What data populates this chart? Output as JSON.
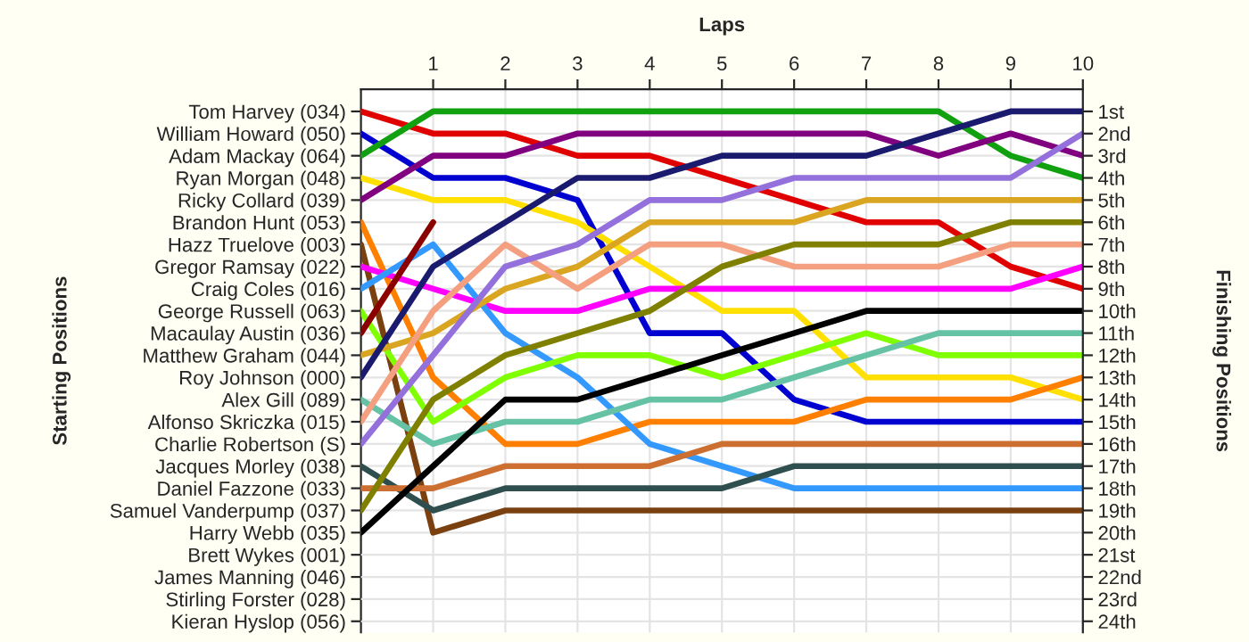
{
  "chart_data": {
    "type": "line",
    "xlabel": "Laps",
    "y2label": "Finishing Positions",
    "x": [
      0,
      1,
      2,
      3,
      4,
      5,
      6,
      7,
      8,
      9,
      10
    ],
    "xlim": [
      0,
      10
    ],
    "xticks": [
      1,
      2,
      3,
      4,
      5,
      6,
      7,
      8,
      9,
      10
    ],
    "y2lim": [
      24.5,
      0
    ],
    "y2ticks": [
      {
        "value": 1,
        "label": "1st"
      },
      {
        "value": 2,
        "label": "2nd"
      },
      {
        "value": 3,
        "label": "3rd"
      },
      {
        "value": 4,
        "label": "4th"
      },
      {
        "value": 5,
        "label": "5th"
      },
      {
        "value": 6,
        "label": "6th"
      },
      {
        "value": 7,
        "label": "7th"
      },
      {
        "value": 8,
        "label": "8th"
      },
      {
        "value": 9,
        "label": "9th"
      },
      {
        "value": 10,
        "label": "10th"
      },
      {
        "value": 11,
        "label": "11th"
      },
      {
        "value": 12,
        "label": "12th"
      },
      {
        "value": 13,
        "label": "13th"
      },
      {
        "value": 14,
        "label": "14th"
      },
      {
        "value": 15,
        "label": "15th"
      },
      {
        "value": 16,
        "label": "16th"
      },
      {
        "value": 17,
        "label": "17th"
      },
      {
        "value": 18,
        "label": "18th"
      },
      {
        "value": 19,
        "label": "19th"
      },
      {
        "value": 20,
        "label": "20th"
      },
      {
        "value": 21,
        "label": "21st"
      },
      {
        "value": 22,
        "label": "22nd"
      },
      {
        "value": 23,
        "label": "23rd"
      },
      {
        "value": 24,
        "label": "24th"
      }
    ],
    "annotations": [
      "Brett Wykes (001)",
      "James Manning (046)",
      "Stirling Forster (028)",
      "Kieran Hyslop (056)",
      "Starting Positions"
    ],
    "grid": true,
    "legend": "left",
    "marker": "none",
    "line_style": "solid",
    "series": [
      {
        "name": "Tom Harvey (034)",
        "axis": "y2",
        "color": "#e00000",
        "values": [
          1,
          2,
          2,
          3,
          3,
          4,
          5,
          6,
          6,
          8,
          9
        ]
      },
      {
        "name": "William Howard (050)",
        "axis": "y2",
        "color": "#0000d0",
        "values": [
          2,
          4,
          4,
          5,
          11,
          11,
          14,
          15,
          15,
          15,
          15
        ]
      },
      {
        "name": "Adam Mackay (064)",
        "axis": "y2",
        "color": "#10a010",
        "values": [
          3,
          1,
          1,
          1,
          1,
          1,
          1,
          1,
          1,
          3,
          4
        ]
      },
      {
        "name": "Ryan Morgan (048)",
        "axis": "y2",
        "color": "#ffe000",
        "values": [
          4,
          5,
          5,
          6,
          8,
          10,
          10,
          13,
          13,
          13,
          14
        ]
      },
      {
        "name": "Ricky Collard (039)",
        "axis": "y2",
        "color": "#800080",
        "values": [
          5,
          3,
          3,
          2,
          2,
          2,
          2,
          2,
          3,
          2,
          3
        ]
      },
      {
        "name": "Brandon Hunt (053)",
        "axis": "y2",
        "color": "#ff7f00",
        "values": [
          6,
          13,
          16,
          16,
          15,
          15,
          15,
          14,
          14,
          14,
          13
        ]
      },
      {
        "name": "Hazz Truelove (003)",
        "axis": "y2",
        "color": "#7a4010",
        "values": [
          7,
          20,
          19,
          19,
          19,
          19,
          19,
          19,
          19,
          19,
          19
        ]
      },
      {
        "name": "Gregor Ramsay (022)",
        "axis": "y2",
        "color": "#ff00ff",
        "values": [
          8,
          9,
          10,
          10,
          9,
          9,
          9,
          9,
          9,
          9,
          8
        ]
      },
      {
        "name": "Craig Coles (016)",
        "axis": "y2",
        "color": "#3399ff",
        "values": [
          9,
          7,
          11,
          13,
          16,
          17,
          18,
          18,
          18,
          18,
          18
        ]
      },
      {
        "name": "George Russell (063)",
        "axis": "y2",
        "color": "#80ff00",
        "values": [
          10,
          15,
          13,
          12,
          12,
          13,
          12,
          11,
          12,
          12,
          12
        ]
      },
      {
        "name": "Macaulay Austin (036)",
        "axis": "y2",
        "color": "#8b0000",
        "values": [
          11,
          6,
          null,
          null,
          null,
          null,
          null,
          null,
          null,
          null,
          null
        ]
      },
      {
        "name": "Matthew Graham (044)",
        "axis": "y2",
        "color": "#daa520",
        "values": [
          12,
          11,
          9,
          8,
          6,
          6,
          6,
          5,
          5,
          5,
          5
        ]
      },
      {
        "name": "Roy Johnson (000)",
        "axis": "y2",
        "color": "#1a1a6e",
        "values": [
          13,
          8,
          6,
          4,
          4,
          3,
          3,
          3,
          2,
          1,
          1
        ]
      },
      {
        "name": "Alex Gill (089)",
        "axis": "y2",
        "color": "#66c2a5",
        "values": [
          14,
          16,
          15,
          15,
          14,
          14,
          13,
          12,
          11,
          11,
          11
        ]
      },
      {
        "name": "Alfonso Skriczka (015)",
        "axis": "y2",
        "color": "#f4a080",
        "values": [
          15,
          10,
          7,
          9,
          7,
          7,
          8,
          8,
          8,
          7,
          7
        ]
      },
      {
        "name": "Charlie Robertson (S)",
        "axis": "y2",
        "color": "#9370db",
        "values": [
          16,
          12,
          8,
          7,
          5,
          5,
          4,
          4,
          4,
          4,
          2
        ]
      },
      {
        "name": "Jacques Morley (038)",
        "axis": "y2",
        "color": "#2f4f4f",
        "values": [
          17,
          19,
          18,
          18,
          18,
          18,
          17,
          17,
          17,
          17,
          17
        ]
      },
      {
        "name": "Daniel Fazzone (033)",
        "axis": "y2",
        "color": "#cd6f30",
        "values": [
          18,
          18,
          17,
          17,
          17,
          16,
          16,
          16,
          16,
          16,
          16
        ]
      },
      {
        "name": "Samuel Vanderpump (037)",
        "axis": "y2",
        "color": "#808000",
        "values": [
          19,
          14,
          12,
          11,
          10,
          8,
          7,
          7,
          7,
          6,
          6
        ]
      },
      {
        "name": "Harry Webb (035)",
        "axis": "y2",
        "color": "#000000",
        "values": [
          20,
          17,
          14,
          14,
          13,
          12,
          11,
          10,
          10,
          10,
          10
        ]
      }
    ]
  }
}
